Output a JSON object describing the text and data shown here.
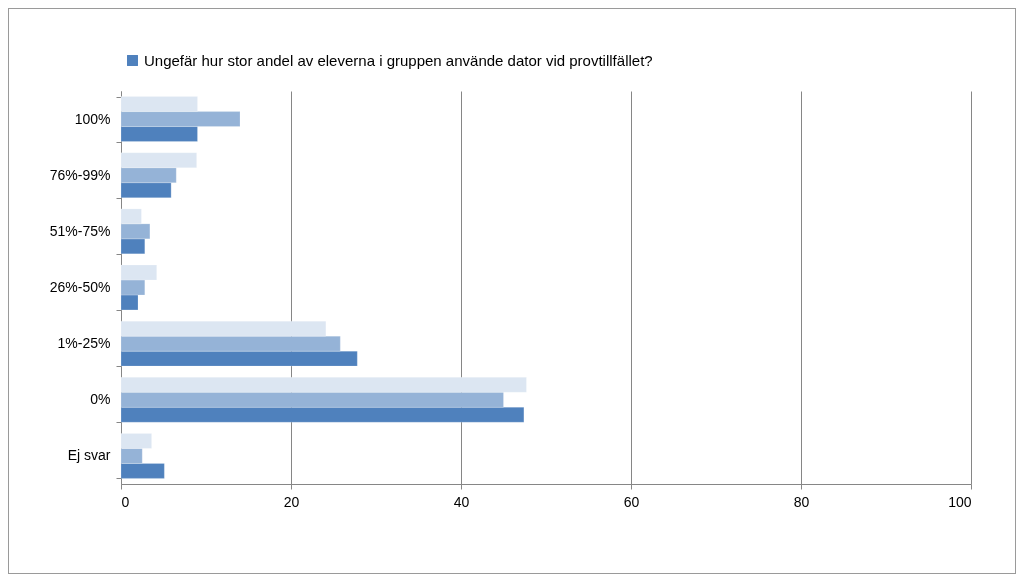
{
  "chart_data": {
    "type": "bar",
    "orientation": "horizontal",
    "categories": [
      "100%",
      "76%-99%",
      "51%-75%",
      "26%-50%",
      "1%-25%",
      "0%",
      "Ej svar"
    ],
    "series": [
      {
        "name": "Ungefär hur stor andel av eleverna i gruppen använde dator vid provtillfället?",
        "color": "#4f81bd",
        "values": [
          9.0,
          5.9,
          2.8,
          2.0,
          27.8,
          47.4,
          5.1
        ]
      },
      {
        "color": "#95b3d7",
        "values": [
          14.0,
          6.5,
          3.4,
          2.8,
          25.8,
          45.0,
          2.5
        ]
      },
      {
        "color": "#dce6f2",
        "values": [
          9.0,
          8.9,
          2.4,
          4.2,
          24.1,
          47.7,
          3.6
        ]
      }
    ],
    "xlim": [
      0,
      100
    ],
    "xticks": [
      0,
      20,
      40,
      60,
      80,
      100
    ],
    "grid": "x",
    "legend": "top"
  }
}
